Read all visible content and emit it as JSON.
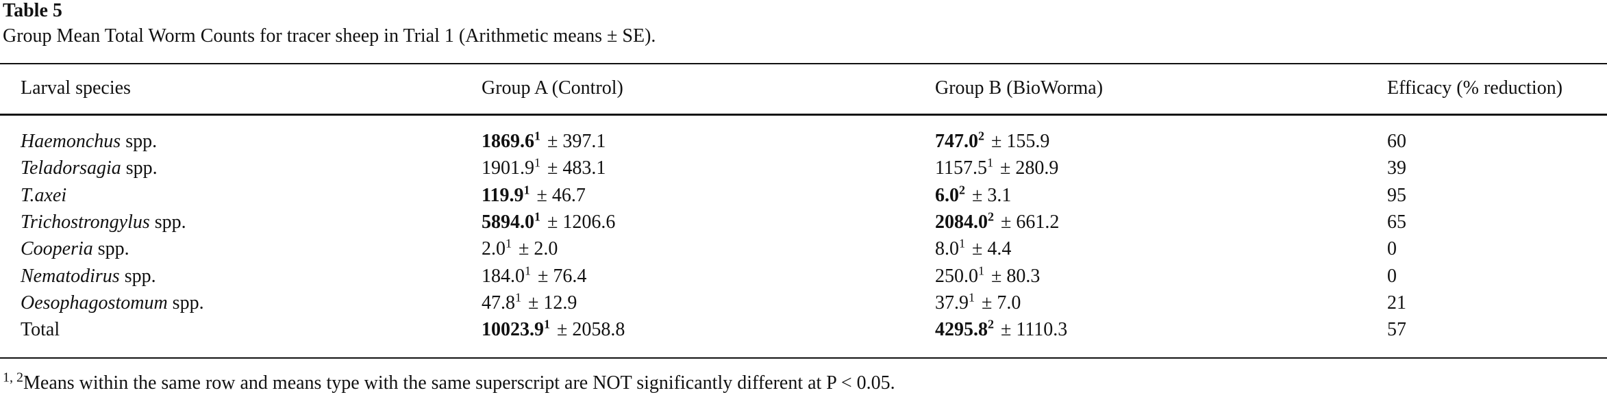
{
  "table_label": "Table 5",
  "caption": "Group Mean Total Worm Counts for tracer sheep in Trial 1 (Arithmetic means ± SE).",
  "headers": {
    "species": "Larval species",
    "group_a": "Group A (Control)",
    "group_b": "Group B (BioWorma)",
    "efficacy": "Efficacy (% reduction)"
  },
  "rows": [
    {
      "species_italic": "Haemonchus",
      "species_suffix": " spp.",
      "a_value": "1869.6",
      "a_sup": "1",
      "a_se": "± 397.1",
      "b_value": "747.0",
      "b_sup": "2",
      "b_se": "± 155.9",
      "efficacy": "60"
    },
    {
      "species_italic": "Teladorsagia",
      "species_suffix": " spp.",
      "a_value": "1901.9",
      "a_sup": "1",
      "a_se": "± 483.1",
      "b_value": "1157.5",
      "b_sup": "1",
      "b_se": "± 280.9",
      "efficacy": "39"
    },
    {
      "species_italic": "T.axei",
      "species_suffix": "",
      "a_value": "119.9",
      "a_sup": "1",
      "a_se": "± 46.7",
      "b_value": "6.0",
      "b_sup": "2",
      "b_se": "± 3.1",
      "efficacy": "95"
    },
    {
      "species_italic": "Trichostrongylus",
      "species_suffix": " spp.",
      "a_value": "5894.0",
      "a_sup": "1",
      "a_se": "± 1206.6",
      "b_value": "2084.0",
      "b_sup": "2",
      "b_se": "± 661.2",
      "efficacy": "65"
    },
    {
      "species_italic": "Cooperia",
      "species_suffix": " spp.",
      "a_value": "2.0",
      "a_sup": "1",
      "a_se": "± 2.0",
      "b_value": "8.0",
      "b_sup": "1",
      "b_se": "± 4.4",
      "efficacy": "0"
    },
    {
      "species_italic": "Nematodirus",
      "species_suffix": " spp.",
      "a_value": "184.0",
      "a_sup": "1",
      "a_se": "± 76.4",
      "b_value": "250.0",
      "b_sup": "1",
      "b_se": "± 80.3",
      "efficacy": "0"
    },
    {
      "species_italic": "Oesophagostomum",
      "species_suffix": " spp.",
      "a_value": "47.8",
      "a_sup": "1",
      "a_se": "± 12.9",
      "b_value": "37.9",
      "b_sup": "1",
      "b_se": "± 7.0",
      "efficacy": "21"
    },
    {
      "species_italic": "",
      "species_suffix": "Total",
      "a_value": "10023.9",
      "a_sup": "1",
      "a_se": "± 2058.8",
      "b_value": "4295.8",
      "b_sup": "2",
      "b_se": "± 1110.3",
      "efficacy": "57"
    }
  ],
  "footnote": {
    "superscripts": "1, 2",
    "text": "Means within the same row and means type with the same superscript are NOT significantly different at P < 0.05."
  }
}
